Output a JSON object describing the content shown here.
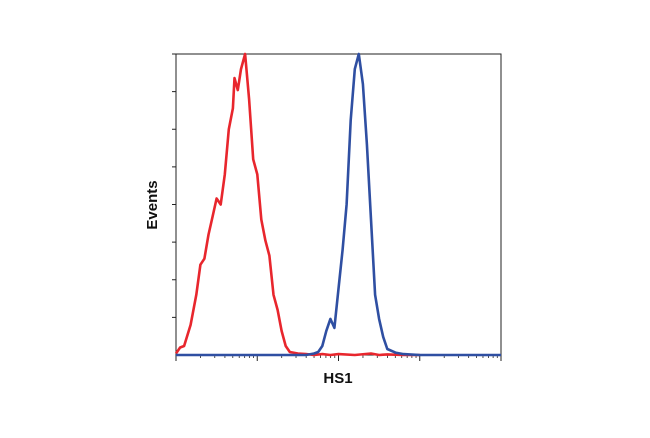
{
  "chart_data": {
    "type": "line",
    "title": "",
    "xlabel": "HS1",
    "ylabel": "Events",
    "x_scale": "log",
    "xlim": [
      0,
      4
    ],
    "ylim": [
      0,
      100
    ],
    "grid": false,
    "legend": "none",
    "series": [
      {
        "color": "#e8262d",
        "x": [
          0.0,
          0.05,
          0.1,
          0.18,
          0.25,
          0.3,
          0.35,
          0.4,
          0.45,
          0.5,
          0.55,
          0.6,
          0.65,
          0.7,
          0.72,
          0.76,
          0.8,
          0.85,
          0.9,
          0.95,
          1.0,
          1.05,
          1.1,
          1.15,
          1.2,
          1.25,
          1.3,
          1.35,
          1.4,
          1.5,
          1.6,
          1.7,
          1.8,
          1.9,
          2.0,
          2.2,
          2.4,
          2.5,
          2.6,
          2.8,
          3.0
        ],
        "y": [
          0.5,
          2.5,
          3,
          10,
          20,
          30,
          32,
          40,
          46,
          52,
          50,
          60,
          75,
          82,
          92,
          88,
          95,
          100,
          85,
          65,
          60,
          45,
          38,
          33,
          20,
          15,
          8,
          3,
          1,
          0.5,
          0.3,
          0,
          0.3,
          0,
          0.3,
          0,
          0.5,
          0,
          0.2,
          0,
          0
        ]
      },
      {
        "color": "#2f4fa2",
        "x": [
          0.0,
          0.3,
          0.6,
          1.0,
          1.3,
          1.6,
          1.7,
          1.75,
          1.8,
          1.85,
          1.9,
          1.95,
          2.0,
          2.05,
          2.1,
          2.15,
          2.2,
          2.25,
          2.3,
          2.35,
          2.4,
          2.45,
          2.5,
          2.55,
          2.6,
          2.7,
          2.8,
          3.0,
          3.5,
          4.0
        ],
        "y": [
          0,
          0,
          0,
          0,
          0,
          0,
          0.5,
          1,
          3,
          8,
          12,
          9,
          22,
          35,
          50,
          78,
          95,
          100,
          90,
          70,
          45,
          20,
          12,
          6,
          2,
          0.8,
          0.3,
          0,
          0,
          0
        ]
      }
    ]
  }
}
